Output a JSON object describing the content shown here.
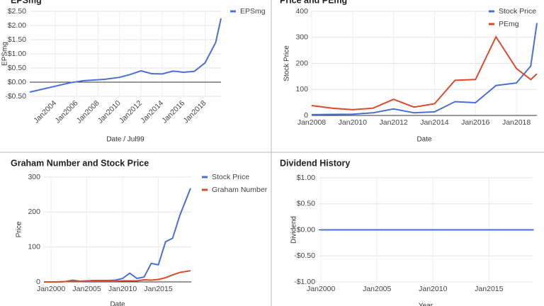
{
  "chart_data": [
    {
      "type": "line",
      "title": "EPSmg",
      "x_label": "Date / Jul99",
      "y_label": "EPSmg",
      "legend": "right",
      "x": [
        2001.6,
        2005.4,
        2006.6,
        2008.6,
        2010,
        2011,
        2012,
        2013,
        2014,
        2015,
        2016,
        2017,
        2018,
        2019,
        2019.5
      ],
      "series": [
        {
          "name": "EPSmg",
          "color": "#4a6fd6",
          "values": [
            -0.35,
            -0.02,
            0.05,
            0.1,
            0.17,
            0.27,
            0.4,
            0.3,
            0.29,
            0.39,
            0.35,
            0.38,
            0.68,
            1.4,
            2.25
          ]
        }
      ],
      "xlim": [
        2001.6,
        2019.5
      ],
      "ylim": [
        -0.5,
        2.5
      ],
      "xticks": [
        {
          "value": 2004,
          "label": "Jan2004"
        },
        {
          "value": 2006,
          "label": "Jan2006"
        },
        {
          "value": 2008,
          "label": "Jan2008"
        },
        {
          "value": 2010,
          "label": "Jan2010"
        },
        {
          "value": 2012,
          "label": "Jan2012"
        },
        {
          "value": 2014,
          "label": "Jan2014"
        },
        {
          "value": 2016,
          "label": "Jan2016"
        },
        {
          "value": 2018,
          "label": "Jan2018"
        }
      ],
      "yticks": [
        {
          "value": 2.5,
          "label": "$2.50"
        },
        {
          "value": 2,
          "label": "$2.00"
        },
        {
          "value": 1.5,
          "label": "$1.50"
        },
        {
          "value": 1,
          "label": "$1.00"
        },
        {
          "value": 0.5,
          "label": "$0.50"
        },
        {
          "value": 0,
          "label": "$0.00"
        },
        {
          "value": -0.5,
          "label": "-$0.50"
        }
      ],
      "grid": true
    },
    {
      "type": "line",
      "title": "Price and PEmg",
      "x_label": "Date",
      "y_label": "Stock Price",
      "legend": "right",
      "x": [
        2008,
        2009,
        2010,
        2011,
        2012,
        2013,
        2014,
        2015,
        2016,
        2017,
        2018,
        2018.7,
        2019
      ],
      "series": [
        {
          "name": "Stock Price",
          "color": "#4a6fd6",
          "values": [
            3,
            4,
            5,
            10,
            25,
            10,
            14,
            53,
            49,
            115,
            125,
            190,
            355
          ]
        },
        {
          "name": "PEmg",
          "color": "#db4a2b",
          "values": [
            38,
            28,
            22,
            28,
            62,
            32,
            45,
            135,
            138,
            302,
            180,
            138,
            160
          ]
        }
      ],
      "xlim": [
        2008,
        2019
      ],
      "ylim": [
        0,
        400
      ],
      "xticks": [
        {
          "value": 2008,
          "label": "Jan2008"
        },
        {
          "value": 2010,
          "label": "Jan2010"
        },
        {
          "value": 2012,
          "label": "Jan2012"
        },
        {
          "value": 2014,
          "label": "Jan2014"
        },
        {
          "value": 2016,
          "label": "Jan2016"
        },
        {
          "value": 2018,
          "label": "Jan2018"
        }
      ],
      "yticks": [
        0,
        100,
        200,
        300,
        400
      ],
      "grid": true
    },
    {
      "type": "line",
      "title": "Graham Number and Stock Price",
      "x_label": "Date",
      "y_label": "Price",
      "legend": "right",
      "x": [
        1999,
        2000,
        2001,
        2002,
        2003,
        2004,
        2005,
        2006,
        2007,
        2008,
        2009,
        2010,
        2011,
        2012,
        2013,
        2014,
        2015,
        2016,
        2017,
        2018,
        2019.5
      ],
      "series": [
        {
          "name": "Stock Price",
          "color": "#4a6fd6",
          "values": [
            0,
            0,
            0,
            1,
            5,
            2,
            3,
            4,
            4,
            4,
            5,
            10,
            25,
            10,
            14,
            53,
            49,
            115,
            125,
            190,
            268
          ]
        },
        {
          "name": "Graham Number",
          "color": "#db4a2b",
          "values": [
            0,
            0,
            0,
            1,
            2,
            1,
            2,
            2,
            2,
            2,
            2,
            3,
            3,
            3,
            6,
            5,
            7,
            12,
            20,
            27,
            32
          ]
        }
      ],
      "xlim": [
        1999,
        2019.6
      ],
      "ylim": [
        0,
        300
      ],
      "xticks": [
        {
          "value": 2000,
          "label": "Jan2000"
        },
        {
          "value": 2005,
          "label": "Jan2005"
        },
        {
          "value": 2010,
          "label": "Jan2010"
        },
        {
          "value": 2015,
          "label": "Jan2015"
        }
      ],
      "yticks": [
        0,
        100,
        200,
        300
      ],
      "grid": true
    },
    {
      "type": "line",
      "title": "Dividend History",
      "x_label": "Year",
      "y_label": "Dividend",
      "x": [
        2000,
        2019
      ],
      "series": [
        {
          "color": "#4a6fd6",
          "values": [
            0,
            0
          ]
        }
      ],
      "xlim": [
        1999.8,
        2018.9
      ],
      "ylim": [
        -1,
        1
      ],
      "xticks": [
        {
          "value": 2000,
          "label": "Jan2000"
        },
        {
          "value": 2005,
          "label": "Jan2005"
        },
        {
          "value": 2010,
          "label": "Jan2010"
        },
        {
          "value": 2015,
          "label": "Jan2015"
        }
      ],
      "yticks": [
        {
          "value": 1,
          "label": "$1.00"
        },
        {
          "value": 0.5,
          "label": "$0.50"
        },
        {
          "value": 0,
          "label": "$0.00"
        },
        {
          "value": -0.5,
          "label": "-$0.50"
        },
        {
          "value": -1,
          "label": "-$1.00"
        }
      ],
      "grid": true
    }
  ]
}
